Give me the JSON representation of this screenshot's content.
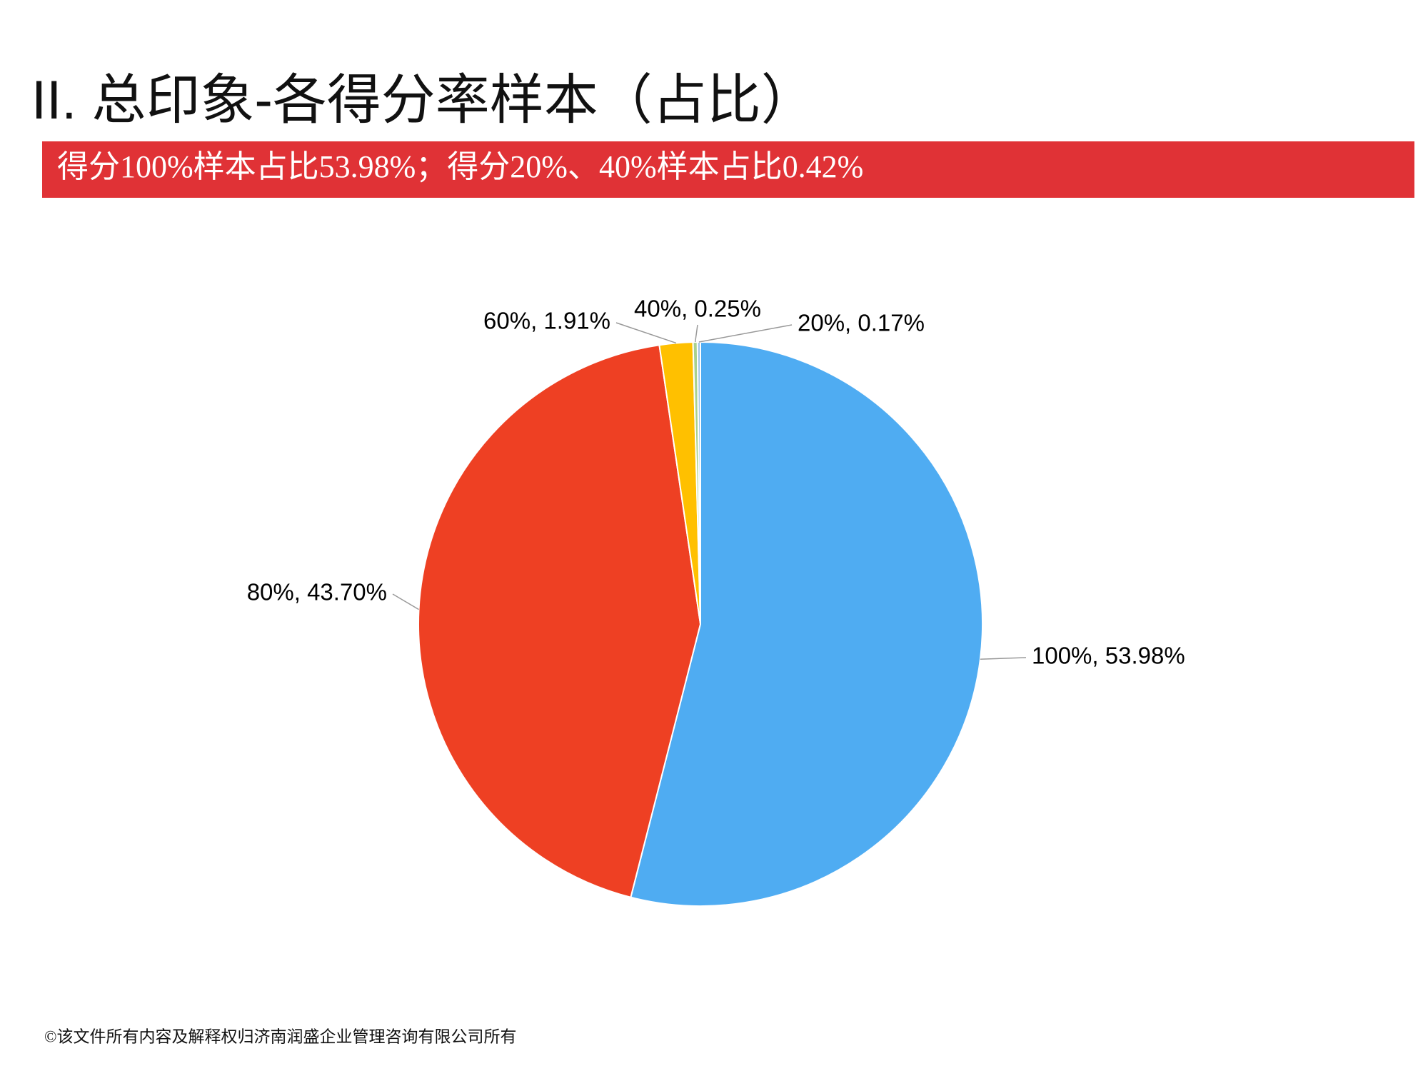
{
  "header": {
    "title": "II.  总印象-各得分率样本（占比）",
    "banner": "得分100%样本占比53.98%；得分20%、40%样本占比0.42%"
  },
  "chart_data": {
    "type": "pie",
    "values": [
      53.98,
      43.7,
      1.91,
      0.25,
      0.17
    ],
    "value_labels": [
      "100%, 53.98%",
      "80%, 43.70%",
      "60%, 1.91%",
      "40%, 0.25%",
      "20%, 0.17%"
    ],
    "colors": [
      "#4facf2",
      "#ee4023",
      "#ffc000",
      "#a9d18e",
      "#9dc3e6"
    ]
  },
  "footer": "©该文件所有内容及解释权归济南润盛企业管理咨询有限公司所有"
}
